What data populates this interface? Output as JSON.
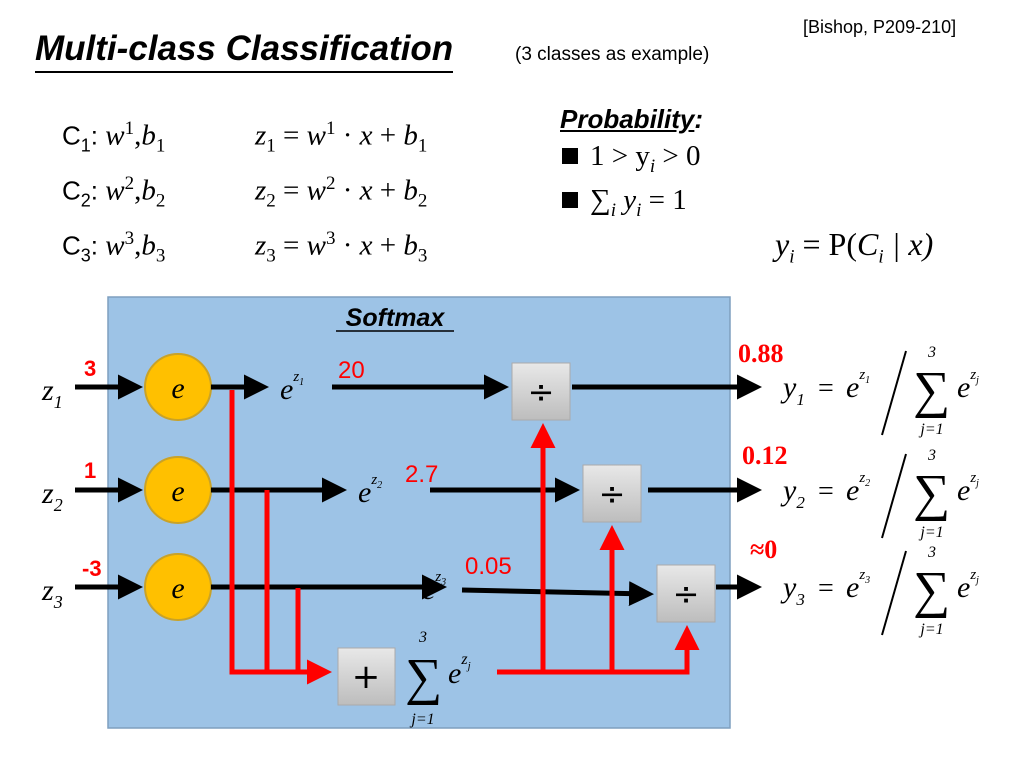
{
  "header": {
    "title": "Multi-class Classification",
    "subtitle": "(3 classes as example)",
    "citation": "[Bishop, P209-210]"
  },
  "symbols": {
    "class": "C",
    "w": "w",
    "b": "b",
    "z": "z",
    "x": "x",
    "eq": "=",
    "dot": "·",
    "plus": "+",
    "colon": ":",
    "comma": ","
  },
  "classes": [
    {
      "index": "1"
    },
    {
      "index": "2"
    },
    {
      "index": "3"
    }
  ],
  "probability": {
    "title": "Probability",
    "colon": ":",
    "rule1": {
      "pre": "1 > y",
      "sub": "i",
      "post": " > 0"
    },
    "rule2": {
      "sum": "∑",
      "sub": "i",
      "y": " y",
      "ysub": "i",
      "post": " = 1"
    },
    "definition": {
      "y": "y",
      "sub": "i",
      "mid": " = P(",
      "c": "C",
      "csub": "i",
      "post": " | x)"
    }
  },
  "softmax": {
    "title": "Softmax",
    "node_label": "e",
    "exp_base": "e",
    "div_op": "÷",
    "sum_op": "+",
    "sum_sign": "∑",
    "sum_upper": "3",
    "sum_lower": "j=1",
    "sum_exp": "z",
    "sum_exp_sub": "j",
    "output_var": "y",
    "rows": [
      {
        "index": "1",
        "input_value": "3",
        "exp_value": "20",
        "output_value": "0.88"
      },
      {
        "index": "2",
        "input_value": "1",
        "exp_value": "2.7",
        "output_value": "0.12"
      },
      {
        "index": "3",
        "input_value": "-3",
        "exp_value": "0.05",
        "output_value": "≈0"
      }
    ]
  },
  "colors": {
    "box": "#9dc3e6",
    "node": "#ffc000",
    "highlight": "#ff0000",
    "op_box": "#d9d9d9"
  }
}
